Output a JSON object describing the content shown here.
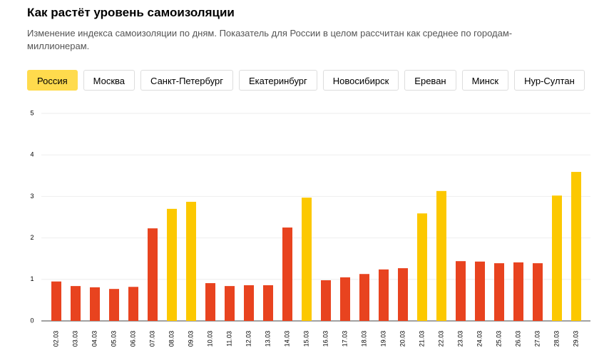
{
  "title": "Как растёт уровень самоизоляции",
  "subtitle": "Изменение индекса самоизоляции по дням. Показатель для России в целом рассчитан как среднее по городам-миллионерам.",
  "tabs": [
    "Россия",
    "Москва",
    "Санкт-Петербург",
    "Екатеринбург",
    "Новосибирск",
    "Ереван",
    "Минск",
    "Нур-Султан"
  ],
  "active_tab": 0,
  "chart_data": {
    "type": "bar",
    "categories": [
      "02.03",
      "03.03",
      "04.03",
      "05.03",
      "06.03",
      "07.03",
      "08.03",
      "09.03",
      "10.03",
      "11.03",
      "12.03",
      "13.03",
      "14.03",
      "15.03",
      "16.03",
      "17.03",
      "18.03",
      "19.03",
      "20.03",
      "21.03",
      "22.03",
      "23.03",
      "24.03",
      "25.03",
      "26.03",
      "27.03",
      "28.03",
      "29.03"
    ],
    "values": [
      0.95,
      0.84,
      0.81,
      0.77,
      0.82,
      2.23,
      2.7,
      2.87,
      0.91,
      0.84,
      0.86,
      0.86,
      2.25,
      2.97,
      0.98,
      1.05,
      1.13,
      1.24,
      1.27,
      2.59,
      3.13,
      1.44,
      1.43,
      1.39,
      1.41,
      1.39,
      3.02,
      3.59
    ],
    "colors": [
      "#e8431f",
      "#e8431f",
      "#e8431f",
      "#e8431f",
      "#e8431f",
      "#e8431f",
      "#fcc800",
      "#fcc800",
      "#e8431f",
      "#e8431f",
      "#e8431f",
      "#e8431f",
      "#e8431f",
      "#fcc800",
      "#e8431f",
      "#e8431f",
      "#e8431f",
      "#e8431f",
      "#e8431f",
      "#fcc800",
      "#fcc800",
      "#e8431f",
      "#e8431f",
      "#e8431f",
      "#e8431f",
      "#e8431f",
      "#fcc800",
      "#fcc800"
    ],
    "ylim": [
      0,
      5
    ],
    "yticks": [
      0,
      1,
      2,
      3,
      4,
      5
    ],
    "grid": true
  }
}
